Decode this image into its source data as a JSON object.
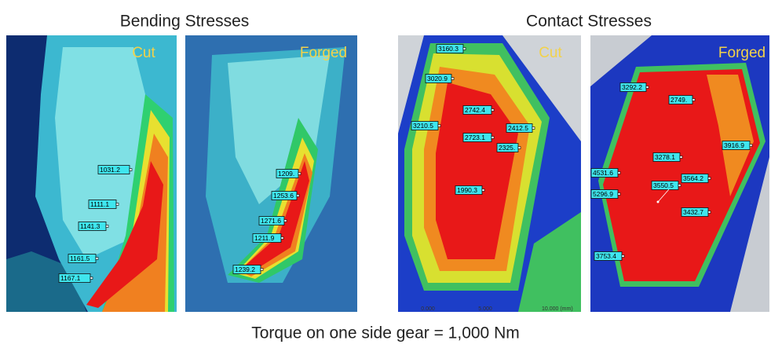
{
  "headings": [
    "Bending Stresses",
    "Contact Stresses"
  ],
  "panels": [
    {
      "tag": "Cut",
      "probes": [
        "1031.2",
        "1111.1",
        "1141.3",
        "1161.5",
        "1167.1"
      ]
    },
    {
      "tag": "Forged",
      "probes": [
        "1209.",
        "1253.6",
        "1271.6",
        "1211.9",
        "1239.2"
      ]
    },
    {
      "tag": "Cut",
      "probes": [
        "3160.3",
        "3020.9",
        "2742.4",
        "3210.5",
        "2412.5",
        "2723.1",
        "2325.",
        "1990.3"
      ],
      "scale": [
        "0.000",
        "5.000",
        "10.000 (mm)"
      ]
    },
    {
      "tag": "Forged",
      "probes": [
        "3292.2",
        "2749.",
        "3916.9",
        "3278.1",
        "4531.6",
        "3564.2",
        "3550.5",
        "5296.9",
        "3432.7",
        "3753.4"
      ]
    }
  ],
  "caption": "Torque on one side gear = 1,000 Nm"
}
